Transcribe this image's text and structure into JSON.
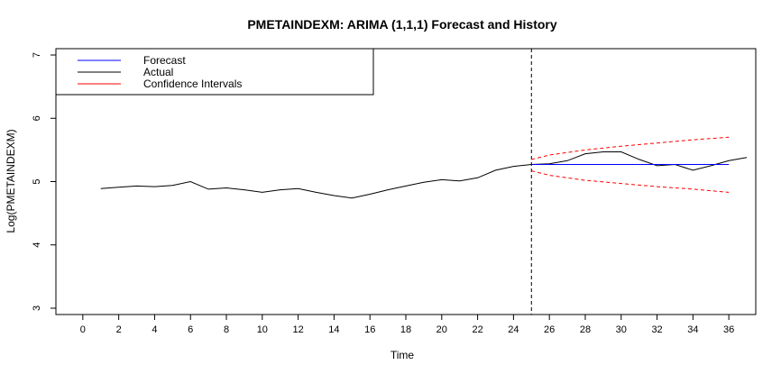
{
  "chart_data": {
    "type": "line",
    "title": "PMETAINDEXM: ARIMA (1,1,1) Forecast and History",
    "xlabel": "Time",
    "ylabel": "Log(PMETAINDEXM)",
    "xlim": [
      -1.5,
      37.5
    ],
    "ylim": [
      2.9,
      7.1
    ],
    "x_ticks": [
      0,
      2,
      4,
      6,
      8,
      10,
      12,
      14,
      16,
      18,
      20,
      22,
      24,
      26,
      28,
      30,
      32,
      34,
      36
    ],
    "y_ticks": [
      3,
      4,
      5,
      6,
      7
    ],
    "forecast_origin": 25,
    "legend": {
      "placement": "top-left",
      "entries": [
        {
          "label": "Forecast",
          "color": "#0000ff"
        },
        {
          "label": "Actual",
          "color": "#000000"
        },
        {
          "label": "Confidence Intervals",
          "color": "#ff0000"
        }
      ]
    },
    "series": [
      {
        "key": "actual",
        "color": "#000000",
        "x": [
          1,
          2,
          3,
          4,
          5,
          6,
          7,
          8,
          9,
          10,
          11,
          12,
          13,
          14,
          15,
          16,
          17,
          18,
          19,
          20,
          21,
          22,
          23,
          24,
          25,
          26,
          27,
          28,
          29,
          30,
          31,
          32,
          33,
          34,
          35,
          36,
          37
        ],
        "values": [
          4.89,
          4.91,
          4.93,
          4.92,
          4.94,
          5.0,
          4.88,
          4.9,
          4.87,
          4.83,
          4.87,
          4.89,
          4.83,
          4.78,
          4.74,
          4.8,
          4.87,
          4.93,
          4.99,
          5.03,
          5.01,
          5.06,
          5.18,
          5.24,
          5.27,
          5.28,
          5.33,
          5.44,
          5.47,
          5.47,
          5.35,
          5.25,
          5.27,
          5.18,
          5.25,
          5.33,
          5.38
        ]
      },
      {
        "key": "forecast",
        "color": "#0000ff",
        "x": [
          25,
          36
        ],
        "values": [
          5.27,
          5.27
        ]
      },
      {
        "key": "upper_ci",
        "color": "#ff0000",
        "dashed": true,
        "x": [
          25,
          26,
          28,
          30,
          32,
          34,
          36
        ],
        "values": [
          5.35,
          5.42,
          5.5,
          5.56,
          5.61,
          5.66,
          5.7
        ]
      },
      {
        "key": "lower_ci",
        "color": "#ff0000",
        "dashed": true,
        "x": [
          25,
          26,
          28,
          30,
          32,
          34,
          36
        ],
        "values": [
          5.17,
          5.1,
          5.02,
          4.97,
          4.92,
          4.88,
          4.83
        ]
      }
    ]
  }
}
